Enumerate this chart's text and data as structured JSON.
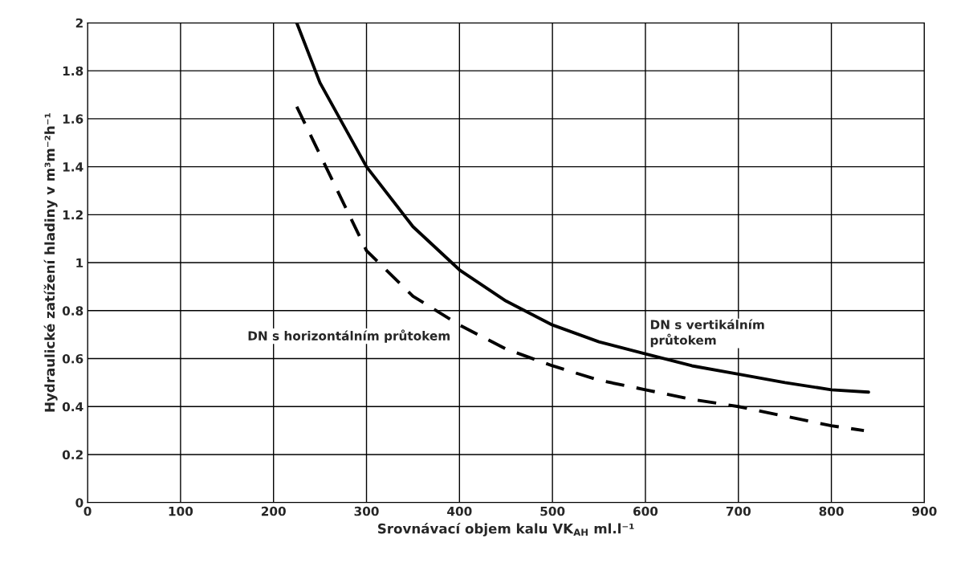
{
  "chart_data": {
    "type": "line",
    "xlabel": "Srovnávací objem kalu VK$_{AH}$ ml.l⁻¹",
    "ylabel": "Hydraulické zatížení hladiny v m³m⁻²h⁻¹",
    "xlim": [
      0,
      900
    ],
    "xticks": [
      0,
      100,
      200,
      300,
      400,
      500,
      600,
      700,
      800,
      900
    ],
    "ylim": [
      0,
      2
    ],
    "yticks": [
      0,
      0.2,
      0.4,
      0.6,
      0.8,
      1,
      1.2,
      1.4,
      1.6,
      1.8,
      2
    ],
    "grid": true,
    "legend": false,
    "marker": "none",
    "series": [
      {
        "name": "DN s vertikálním\nprůtokem",
        "color": "#000000",
        "line_style": "solid",
        "x": [
          225,
          250,
          300,
          350,
          400,
          450,
          500,
          550,
          600,
          650,
          700,
          750,
          800,
          840
        ],
        "values": [
          2.0,
          1.75,
          1.4,
          1.15,
          0.97,
          0.84,
          0.74,
          0.67,
          0.62,
          0.57,
          0.535,
          0.5,
          0.47,
          0.46
        ]
      },
      {
        "name": "DN s horizontálním průtokem",
        "color": "#000000",
        "line_style": "dashed",
        "x": [
          225,
          250,
          300,
          350,
          400,
          450,
          500,
          550,
          600,
          650,
          700,
          750,
          800,
          835
        ],
        "values": [
          1.65,
          1.45,
          1.05,
          0.86,
          0.74,
          0.64,
          0.57,
          0.51,
          0.47,
          0.43,
          0.4,
          0.36,
          0.32,
          0.3
        ]
      }
    ]
  }
}
